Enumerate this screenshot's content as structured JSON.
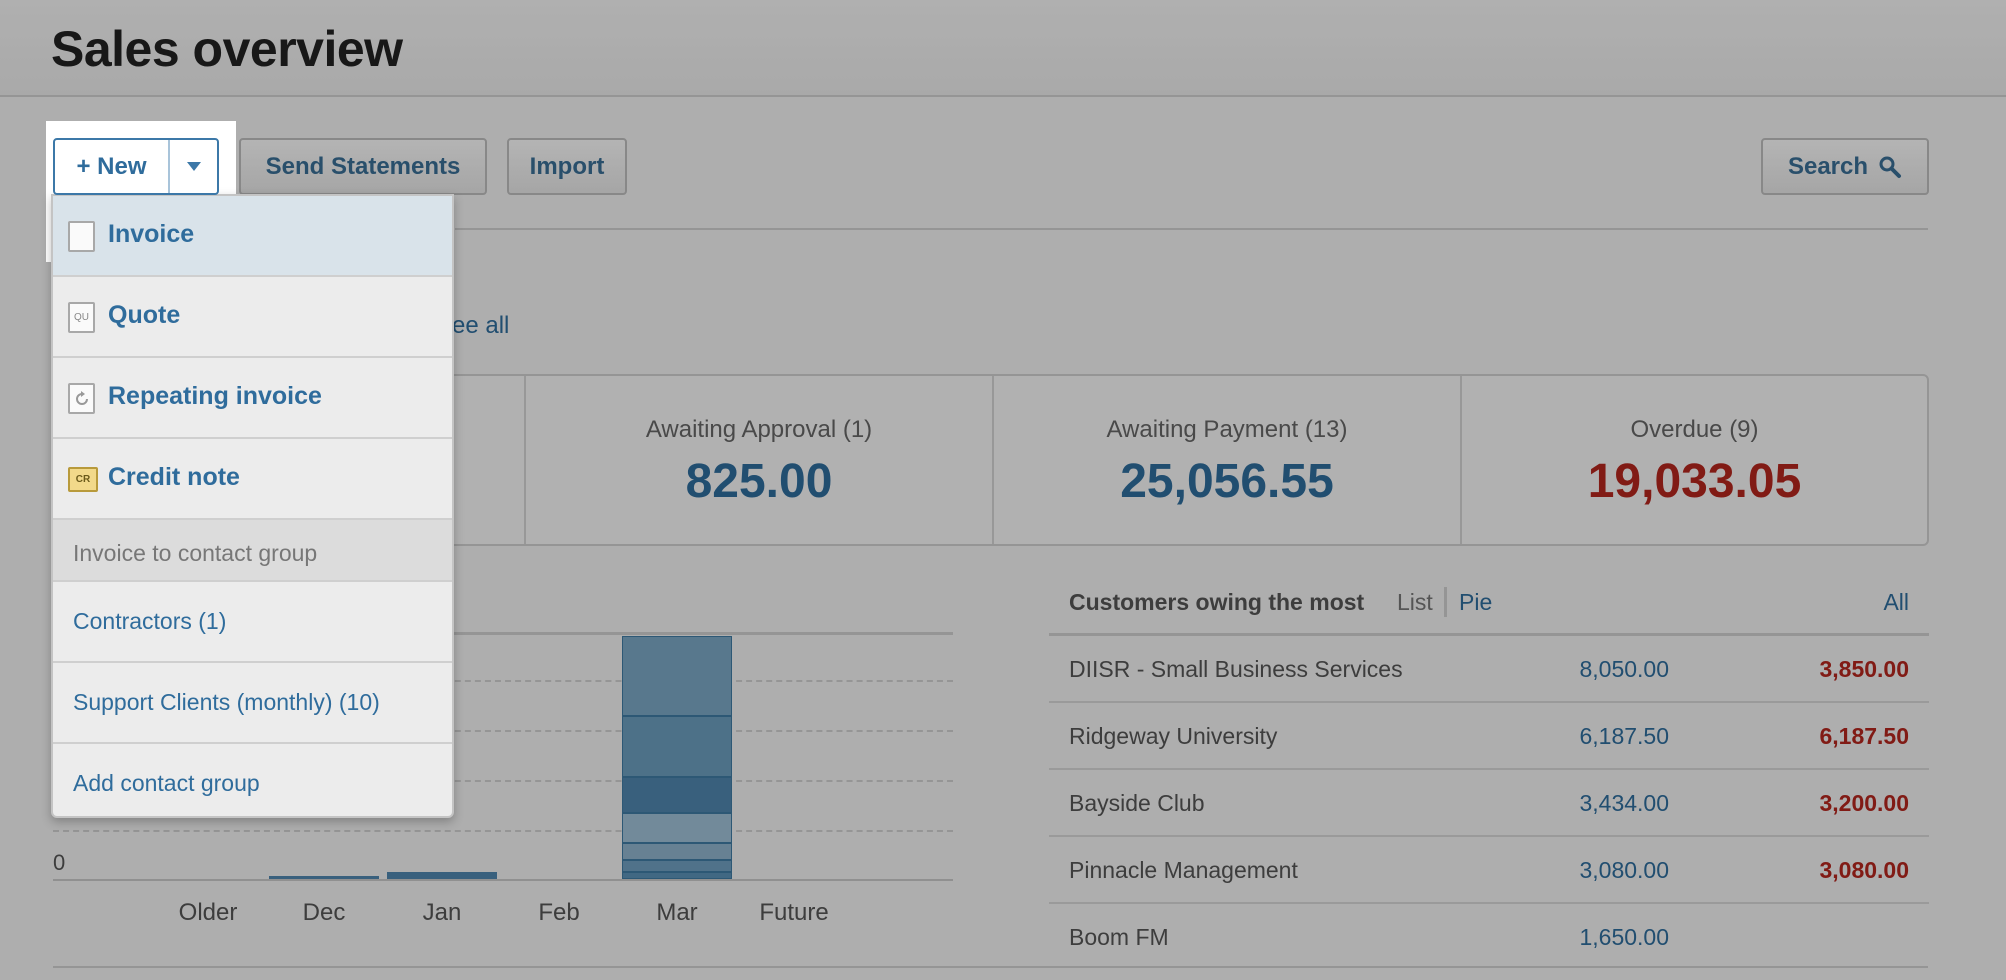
{
  "header": {
    "title": "Sales overview"
  },
  "toolbar": {
    "new_label": "+ New",
    "send_statements_label": "Send Statements",
    "import_label": "Import",
    "search_label": "Search"
  },
  "invoices": {
    "see_all_label": "See all"
  },
  "stats": [
    {
      "label": "Awaiting Approval (1)",
      "value": "825.00"
    },
    {
      "label": "Awaiting Payment (13)",
      "value": "25,056.55"
    },
    {
      "label": "Overdue (9)",
      "value": "19,033.05"
    }
  ],
  "chart_data": {
    "type": "bar",
    "categories": [
      "Older",
      "Dec",
      "Jan",
      "Feb",
      "Mar",
      "Future"
    ],
    "y_tick_labels": [
      "0"
    ],
    "values": [
      0,
      0.5,
      1.2,
      0,
      44,
      0
    ]
  },
  "customers": {
    "title": "Customers owing the most",
    "view_list": "List",
    "view_pie": "Pie",
    "all_label": "All",
    "rows": [
      {
        "name": "DIISR - Small Business Services",
        "owing": "8,050.00",
        "overdue": "3,850.00"
      },
      {
        "name": "Ridgeway University",
        "owing": "6,187.50",
        "overdue": "6,187.50"
      },
      {
        "name": "Bayside Club",
        "owing": "3,434.00",
        "overdue": "3,200.00"
      },
      {
        "name": "Pinnacle Management",
        "owing": "3,080.00",
        "overdue": "3,080.00"
      },
      {
        "name": "Boom FM",
        "owing": "1,650.00",
        "overdue": ""
      }
    ]
  },
  "new_menu": {
    "items": [
      {
        "label": "Invoice",
        "icon": "invoice-icon"
      },
      {
        "label": "Quote",
        "icon": "quote-icon"
      },
      {
        "label": "Repeating invoice",
        "icon": "repeating-invoice-icon"
      },
      {
        "label": "Credit note",
        "icon": "credit-note-icon"
      }
    ],
    "quote_icon_text": "QU",
    "credit_icon_text": "CR",
    "section_label": "Invoice to contact group",
    "groups": [
      {
        "label": "Contractors (1)"
      },
      {
        "label": "Support Clients (monthly) (10)"
      }
    ],
    "add_group_label": "Add contact group"
  }
}
